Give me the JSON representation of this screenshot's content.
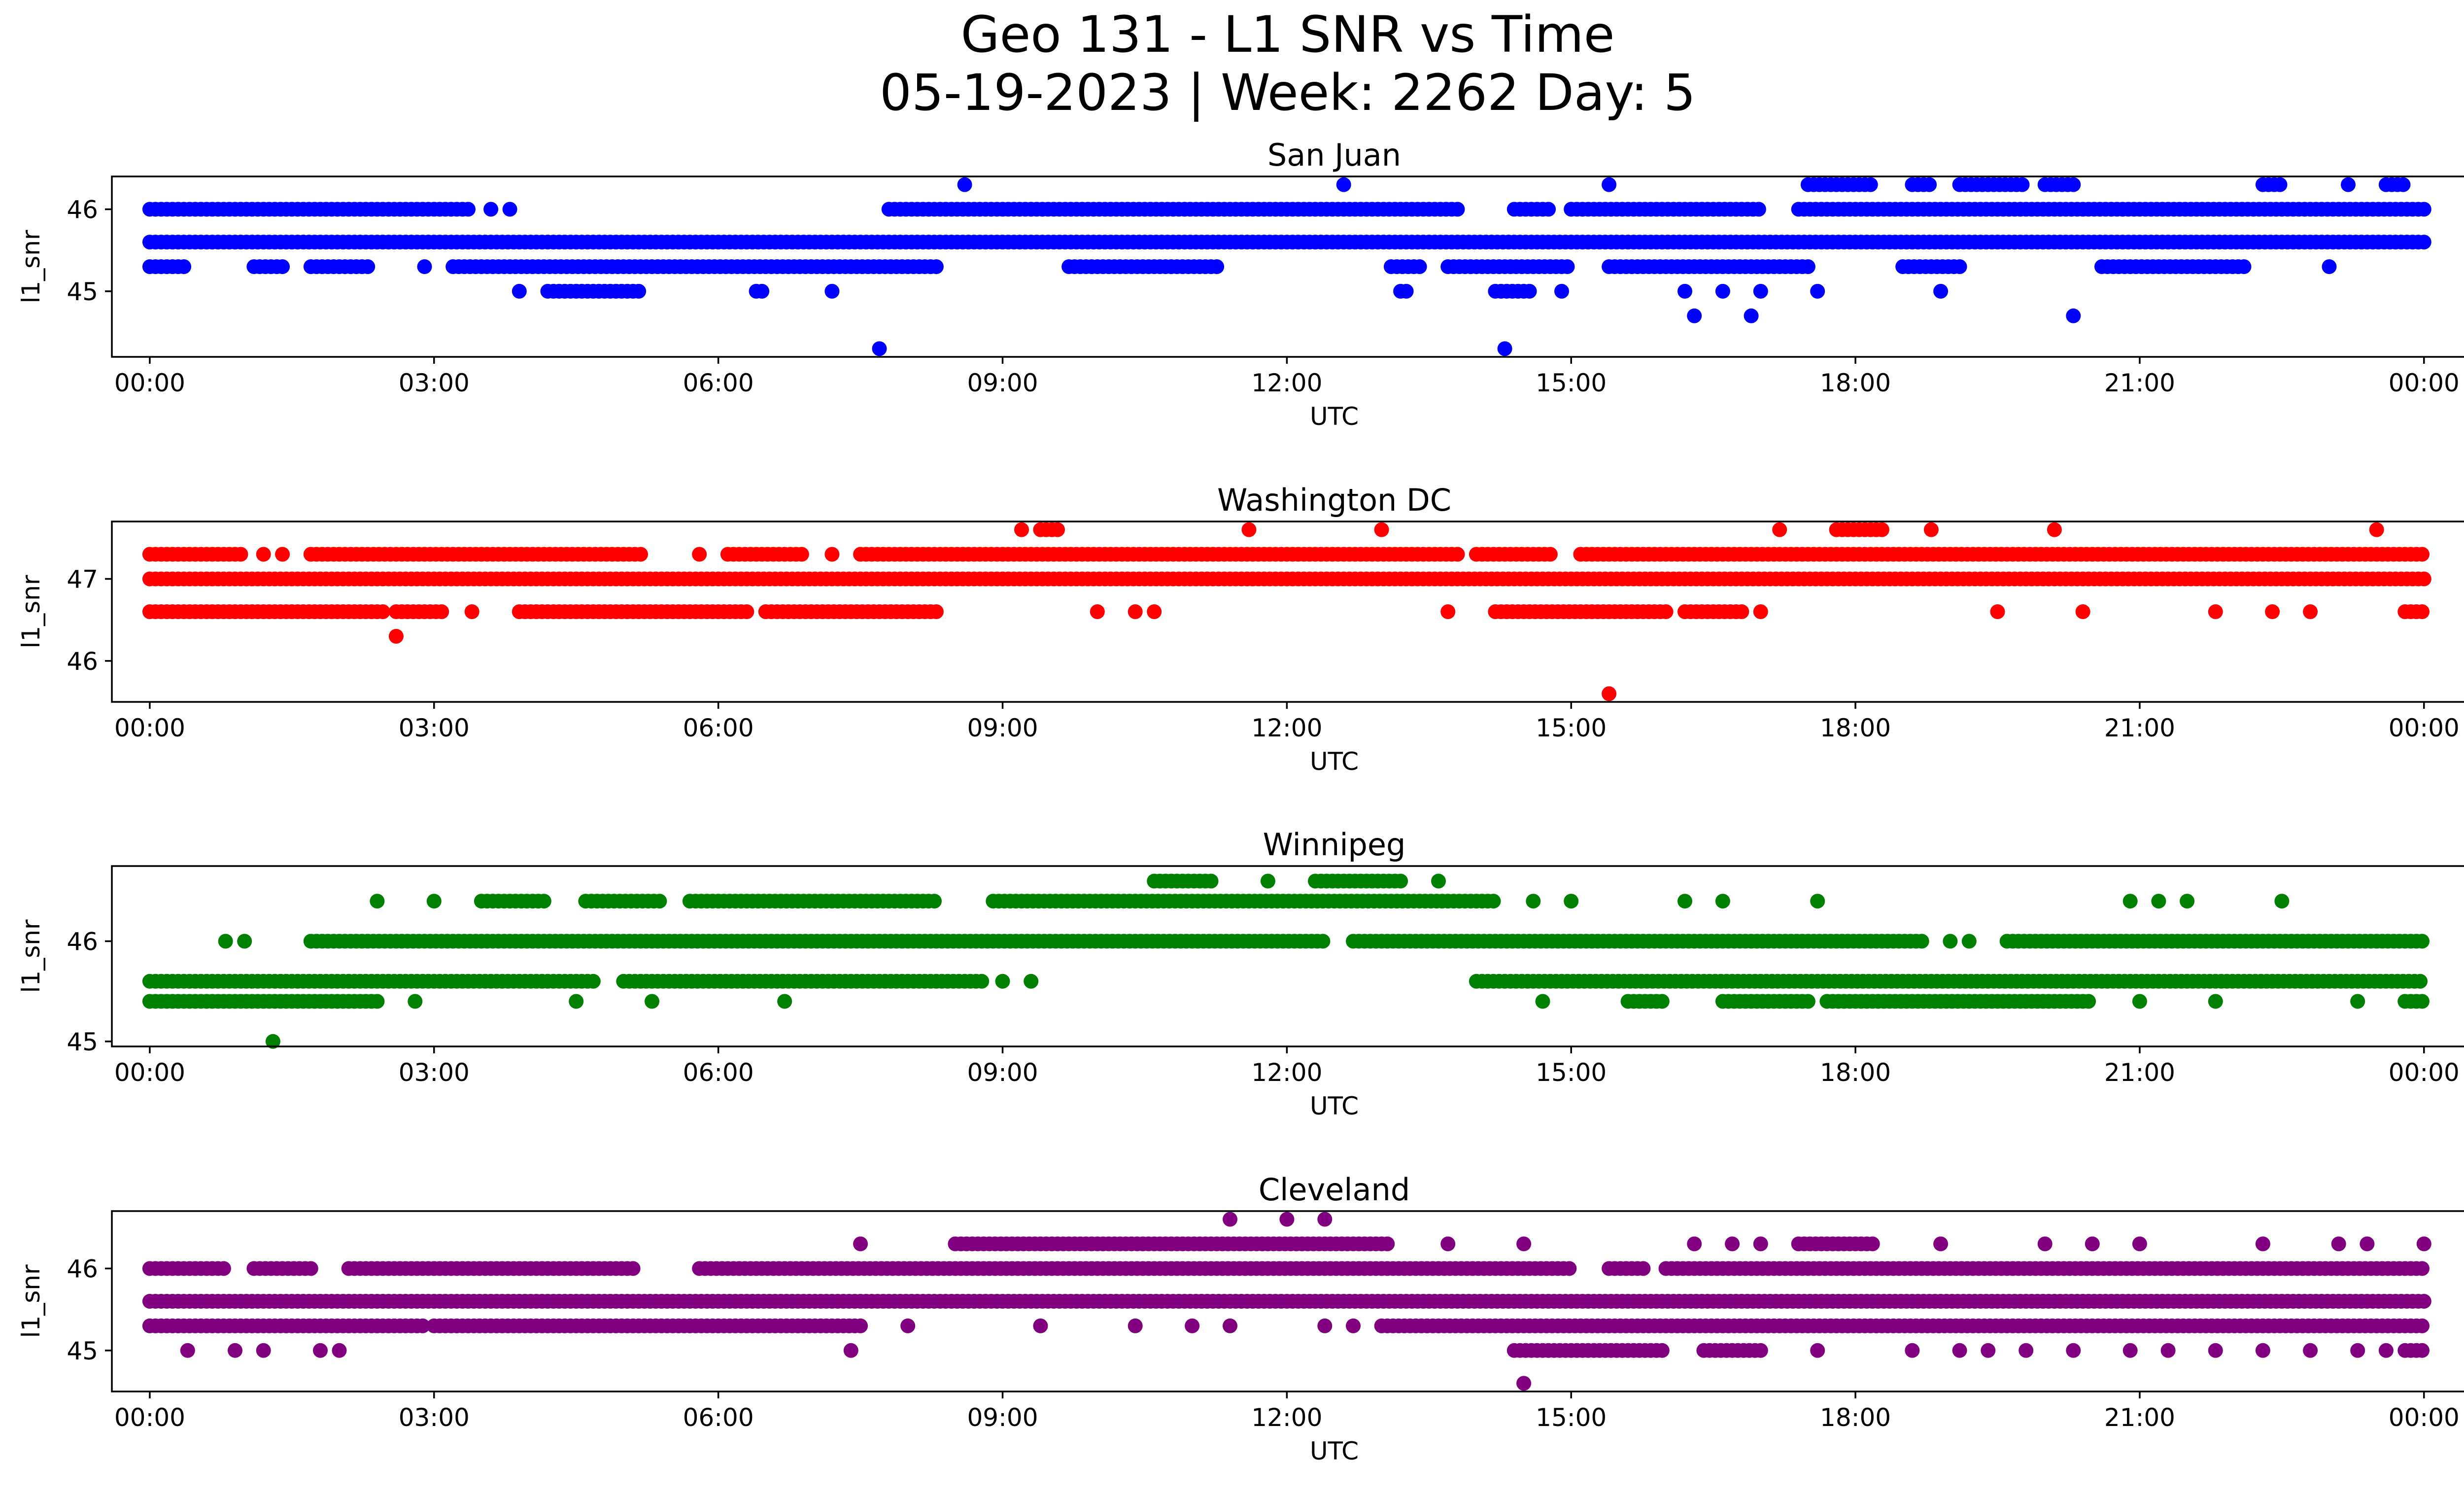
{
  "figure": {
    "title_line1": "Geo 131 - L1 SNR vs Time",
    "title_line2": "05-19-2023 | Week: 2262 Day: 5"
  },
  "chart_data": [
    {
      "type": "scatter",
      "title": "San Juan",
      "xlabel": "UTC",
      "ylabel": "l1_snr",
      "color": "#0000ff",
      "xlim": [
        -0.4,
        25.4
      ],
      "ylim": [
        44.2,
        46.4
      ],
      "xticks": [
        "00:00",
        "03:00",
        "06:00",
        "09:00",
        "12:00",
        "15:00",
        "18:00",
        "21:00",
        "00:00"
      ],
      "yticks": [
        45,
        46
      ],
      "series": [
        {
          "y": 45.6,
          "segments": [
            [
              0.0,
              24.0
            ]
          ],
          "step": 0.06
        },
        {
          "y": 46.0,
          "segments": [
            [
              0.0,
              3.4
            ],
            [
              7.8,
              13.8
            ],
            [
              14.4,
              14.8
            ],
            [
              15.0,
              17.0
            ],
            [
              17.4,
              24.0
            ]
          ],
          "step": 0.06
        },
        {
          "y": 45.3,
          "segments": [
            [
              0.0,
              0.4
            ],
            [
              1.1,
              1.4
            ],
            [
              1.7,
              2.3
            ],
            [
              3.2,
              8.3
            ],
            [
              9.7,
              11.3
            ],
            [
              13.1,
              13.4
            ],
            [
              13.7,
              15.0
            ],
            [
              15.4,
              17.5
            ],
            [
              18.5,
              19.1
            ],
            [
              20.6,
              22.1
            ]
          ],
          "step": 0.06
        },
        {
          "y": 45.0,
          "segments": [
            [
              4.2,
              5.2
            ],
            [
              6.4,
              6.5
            ],
            [
              13.2,
              13.3
            ],
            [
              14.2,
              14.6
            ]
          ],
          "step": 0.06
        },
        {
          "y": 46.3,
          "segments": [
            [
              17.5,
              18.2
            ],
            [
              18.6,
              18.8
            ],
            [
              19.1,
              19.8
            ],
            [
              20.0,
              20.3
            ],
            [
              22.3,
              22.5
            ],
            [
              23.6,
              23.8
            ]
          ],
          "step": 0.06
        },
        {
          "y": 45.0,
          "points": [
            3.9,
            7.2,
            14.9,
            16.2,
            16.6,
            17.0,
            17.6,
            18.9
          ]
        },
        {
          "y": 46.0,
          "points": [
            3.6,
            3.8
          ]
        },
        {
          "y": 45.3,
          "points": [
            2.9,
            23.0
          ]
        },
        {
          "y": 44.7,
          "points": [
            16.3,
            16.9,
            20.3
          ]
        },
        {
          "y": 46.3,
          "points": [
            8.6,
            12.6,
            15.4,
            23.2
          ]
        },
        {
          "y": 44.3,
          "points": [
            7.7,
            14.3
          ]
        }
      ]
    },
    {
      "type": "scatter",
      "title": "Washington DC",
      "xlabel": "UTC",
      "ylabel": "l1_snr",
      "color": "#ff0000",
      "xlim": [
        -0.4,
        25.4
      ],
      "ylim": [
        45.5,
        47.7
      ],
      "xticks": [
        "00:00",
        "03:00",
        "06:00",
        "09:00",
        "12:00",
        "15:00",
        "18:00",
        "21:00",
        "00:00"
      ],
      "yticks": [
        46,
        47
      ],
      "series": [
        {
          "y": 47.0,
          "segments": [
            [
              0.0,
              24.0
            ]
          ],
          "step": 0.06
        },
        {
          "y": 47.3,
          "segments": [
            [
              0.0,
              1.0
            ],
            [
              1.7,
              5.2
            ],
            [
              6.1,
              6.9
            ],
            [
              7.5,
              13.8
            ],
            [
              14.0,
              14.8
            ],
            [
              15.1,
              24.0
            ]
          ],
          "step": 0.06
        },
        {
          "y": 46.6,
          "segments": [
            [
              0.0,
              2.5
            ],
            [
              2.6,
              3.1
            ],
            [
              3.9,
              6.3
            ],
            [
              6.5,
              8.3
            ],
            [
              14.2,
              16.0
            ],
            [
              16.2,
              16.8
            ],
            [
              23.8,
              24.0
            ]
          ],
          "step": 0.06
        },
        {
          "y": 47.6,
          "segments": [
            [
              9.4,
              9.6
            ],
            [
              17.8,
              18.3
            ]
          ],
          "step": 0.06
        },
        {
          "y": 47.3,
          "points": [
            1.2,
            1.4,
            5.8,
            7.2
          ]
        },
        {
          "y": 46.6,
          "points": [
            3.4,
            10.0,
            10.4,
            10.6,
            13.7,
            17.0,
            19.5,
            20.4,
            21.8,
            22.4,
            22.8
          ]
        },
        {
          "y": 47.6,
          "points": [
            9.2,
            11.6,
            13.0,
            17.2,
            18.8,
            20.1,
            23.5
          ]
        },
        {
          "y": 46.3,
          "points": [
            2.6
          ]
        },
        {
          "y": 45.6,
          "points": [
            15.4
          ]
        }
      ]
    },
    {
      "type": "scatter",
      "title": "Winnipeg",
      "xlabel": "UTC",
      "ylabel": "l1_snr",
      "color": "#008000",
      "xlim": [
        -0.4,
        25.4
      ],
      "ylim": [
        44.95,
        46.75
      ],
      "xticks": [
        "00:00",
        "03:00",
        "06:00",
        "09:00",
        "12:00",
        "15:00",
        "18:00",
        "21:00",
        "00:00"
      ],
      "yticks": [
        45,
        46
      ],
      "series": [
        {
          "y": 46.0,
          "segments": [
            [
              1.7,
              12.4
            ],
            [
              12.7,
              18.7
            ],
            [
              19.6,
              24.0
            ]
          ],
          "step": 0.06
        },
        {
          "y": 45.6,
          "segments": [
            [
              0.0,
              4.7
            ],
            [
              5.0,
              8.8
            ],
            [
              14.0,
              24.0
            ]
          ],
          "step": 0.06
        },
        {
          "y": 45.4,
          "segments": [
            [
              0.0,
              2.4
            ],
            [
              15.6,
              16.0
            ],
            [
              16.6,
              17.5
            ],
            [
              17.7,
              20.5
            ],
            [
              23.8,
              24.0
            ]
          ],
          "step": 0.06
        },
        {
          "y": 46.4,
          "segments": [
            [
              3.5,
              4.2
            ],
            [
              4.6,
              5.4
            ],
            [
              5.7,
              8.3
            ],
            [
              8.9,
              14.2
            ]
          ],
          "step": 0.06
        },
        {
          "y": 46.6,
          "segments": [
            [
              10.6,
              11.2
            ],
            [
              12.3,
              13.2
            ]
          ],
          "step": 0.06
        },
        {
          "y": 46.0,
          "points": [
            0.8,
            1.0,
            19.0,
            19.2
          ]
        },
        {
          "y": 45.6,
          "points": [
            9.0,
            9.3
          ]
        },
        {
          "y": 45.4,
          "points": [
            2.8,
            4.5,
            5.3,
            6.7,
            14.7,
            21.0,
            21.8,
            23.3
          ]
        },
        {
          "y": 46.4,
          "points": [
            2.4,
            3.0,
            14.6,
            15.0,
            16.2,
            16.6,
            17.6,
            20.9,
            21.2,
            21.5,
            22.5
          ]
        },
        {
          "y": 46.6,
          "points": [
            11.8,
            13.6
          ]
        },
        {
          "y": 45.0,
          "points": [
            1.3
          ]
        }
      ]
    },
    {
      "type": "scatter",
      "title": "Cleveland",
      "xlabel": "UTC",
      "ylabel": "l1_snr",
      "color": "#800080",
      "xlim": [
        -0.4,
        25.4
      ],
      "ylim": [
        44.5,
        46.7
      ],
      "xticks": [
        "00:00",
        "03:00",
        "06:00",
        "09:00",
        "12:00",
        "15:00",
        "18:00",
        "21:00",
        "00:00"
      ],
      "yticks": [
        45,
        46
      ],
      "series": [
        {
          "y": 45.6,
          "segments": [
            [
              0.0,
              24.0
            ]
          ],
          "step": 0.06
        },
        {
          "y": 45.3,
          "segments": [
            [
              0.0,
              2.9
            ],
            [
              3.0,
              7.5
            ],
            [
              13.0,
              24.0
            ]
          ],
          "step": 0.06
        },
        {
          "y": 46.0,
          "segments": [
            [
              0.0,
              0.8
            ],
            [
              1.1,
              1.7
            ],
            [
              2.1,
              5.1
            ],
            [
              5.8,
              15.0
            ],
            [
              15.4,
              15.8
            ],
            [
              16.0,
              24.0
            ]
          ],
          "step": 0.06
        },
        {
          "y": 46.3,
          "segments": [
            [
              8.5,
              13.1
            ],
            [
              17.4,
              18.2
            ]
          ],
          "step": 0.06
        },
        {
          "y": 45.0,
          "segments": [
            [
              14.4,
              16.0
            ],
            [
              16.4,
              17.0
            ],
            [
              23.8,
              24.0
            ]
          ],
          "step": 0.06
        },
        {
          "y": 45.0,
          "points": [
            0.4,
            0.9,
            1.2,
            1.8,
            2.0,
            7.4,
            17.6,
            18.6,
            19.1,
            19.4,
            19.8,
            20.3,
            20.9,
            21.3,
            21.8,
            22.3,
            22.8,
            23.3,
            23.6
          ]
        },
        {
          "y": 45.3,
          "points": [
            8.0,
            9.4,
            10.4,
            11.0,
            11.4,
            12.4,
            12.7
          ]
        },
        {
          "y": 46.3,
          "points": [
            7.5,
            13.7,
            14.5,
            16.3,
            16.7,
            17.0,
            18.9,
            20.0,
            20.5,
            21.0,
            22.3,
            23.1,
            23.4,
            24.0
          ]
        },
        {
          "y": 46.6,
          "points": [
            11.4,
            12.0,
            12.4
          ]
        },
        {
          "y": 44.6,
          "points": [
            14.5
          ]
        }
      ]
    }
  ]
}
